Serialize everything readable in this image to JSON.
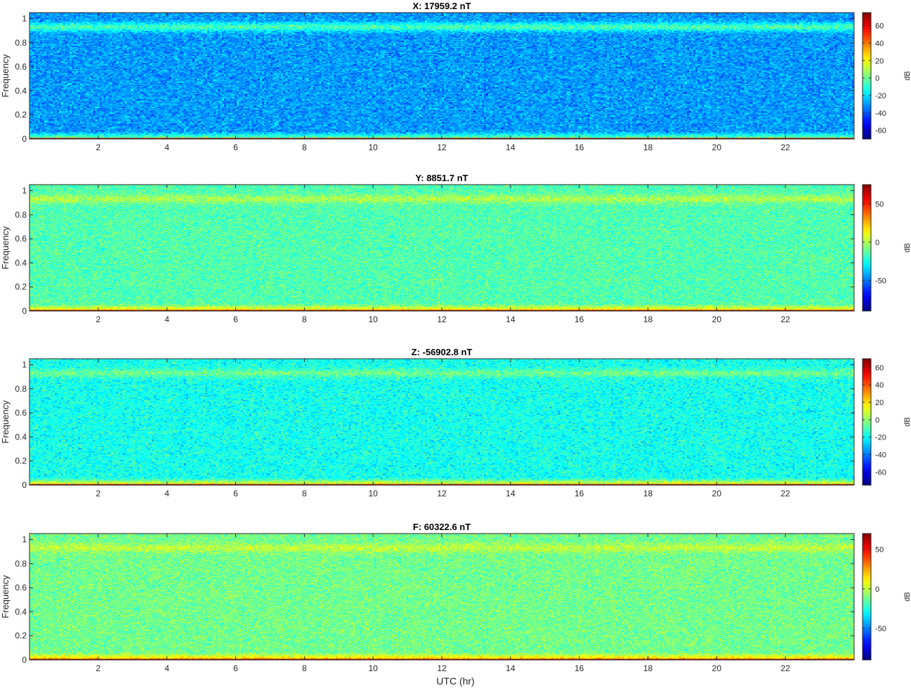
{
  "chart_data": [
    {
      "type": "heatmap",
      "title": "X: 17959.2 nT",
      "xlabel": "",
      "ylabel": "Frequency",
      "xlim": [
        0,
        24
      ],
      "ylim": [
        0,
        1.05
      ],
      "x_ticks": [
        2,
        4,
        6,
        8,
        10,
        12,
        14,
        16,
        18,
        20,
        22
      ],
      "y_ticks": [
        0,
        0.2,
        0.4,
        0.6,
        0.8,
        1
      ],
      "y_tick_labels": [
        "0",
        "0.2",
        "0.4",
        "0.6",
        "0.8",
        "1"
      ],
      "colorbar": {
        "label": "dB",
        "range": [
          -70,
          75
        ],
        "ticks": [
          -60,
          -40,
          -20,
          0,
          20,
          40,
          60
        ]
      },
      "background_level_db": -30,
      "band_near_nyquist_db": -5,
      "dc_band_db": 70
    },
    {
      "type": "heatmap",
      "title": "Y: 8851.7 nT",
      "xlabel": "",
      "ylabel": "Frequency",
      "xlim": [
        0,
        24
      ],
      "ylim": [
        0,
        1.05
      ],
      "x_ticks": [
        2,
        4,
        6,
        8,
        10,
        12,
        14,
        16,
        18,
        20,
        22
      ],
      "y_ticks": [
        0,
        0.2,
        0.4,
        0.6,
        0.8,
        1
      ],
      "y_tick_labels": [
        "0",
        "0.2",
        "0.4",
        "0.6",
        "0.8",
        "1"
      ],
      "colorbar": {
        "label": "dB",
        "range": [
          -90,
          75
        ],
        "ticks": [
          -50,
          0,
          50
        ]
      },
      "background_level_db": -15,
      "band_near_nyquist_db": 0,
      "dc_band_db": 70
    },
    {
      "type": "heatmap",
      "title": "Z: -56902.8 nT",
      "xlabel": "",
      "ylabel": "Frequency",
      "xlim": [
        0,
        24
      ],
      "ylim": [
        0,
        1.05
      ],
      "x_ticks": [
        2,
        4,
        6,
        8,
        10,
        12,
        14,
        16,
        18,
        20,
        22
      ],
      "y_ticks": [
        0,
        0.2,
        0.4,
        0.6,
        0.8,
        1
      ],
      "y_tick_labels": [
        "0",
        "0.2",
        "0.4",
        "0.6",
        "0.8",
        "1"
      ],
      "colorbar": {
        "label": "dB",
        "range": [
          -75,
          70
        ],
        "ticks": [
          -60,
          -40,
          -20,
          0,
          20,
          40,
          60
        ]
      },
      "background_level_db": -18,
      "band_near_nyquist_db": -5,
      "dc_band_db": 65
    },
    {
      "type": "heatmap",
      "title": "F: 60322.6 nT",
      "xlabel": "UTC (hr)",
      "ylabel": "Frequency",
      "xlim": [
        0,
        24
      ],
      "ylim": [
        0,
        1.05
      ],
      "x_ticks": [
        2,
        4,
        6,
        8,
        10,
        12,
        14,
        16,
        18,
        20,
        22
      ],
      "y_ticks": [
        0,
        0.2,
        0.4,
        0.6,
        0.8,
        1
      ],
      "y_tick_labels": [
        "0",
        "0.2",
        "0.4",
        "0.6",
        "0.8",
        "1"
      ],
      "colorbar": {
        "label": "dB",
        "range": [
          -90,
          70
        ],
        "ticks": [
          -50,
          0,
          50
        ]
      },
      "background_level_db": -12,
      "band_near_nyquist_db": 0,
      "dc_band_db": 65
    }
  ]
}
